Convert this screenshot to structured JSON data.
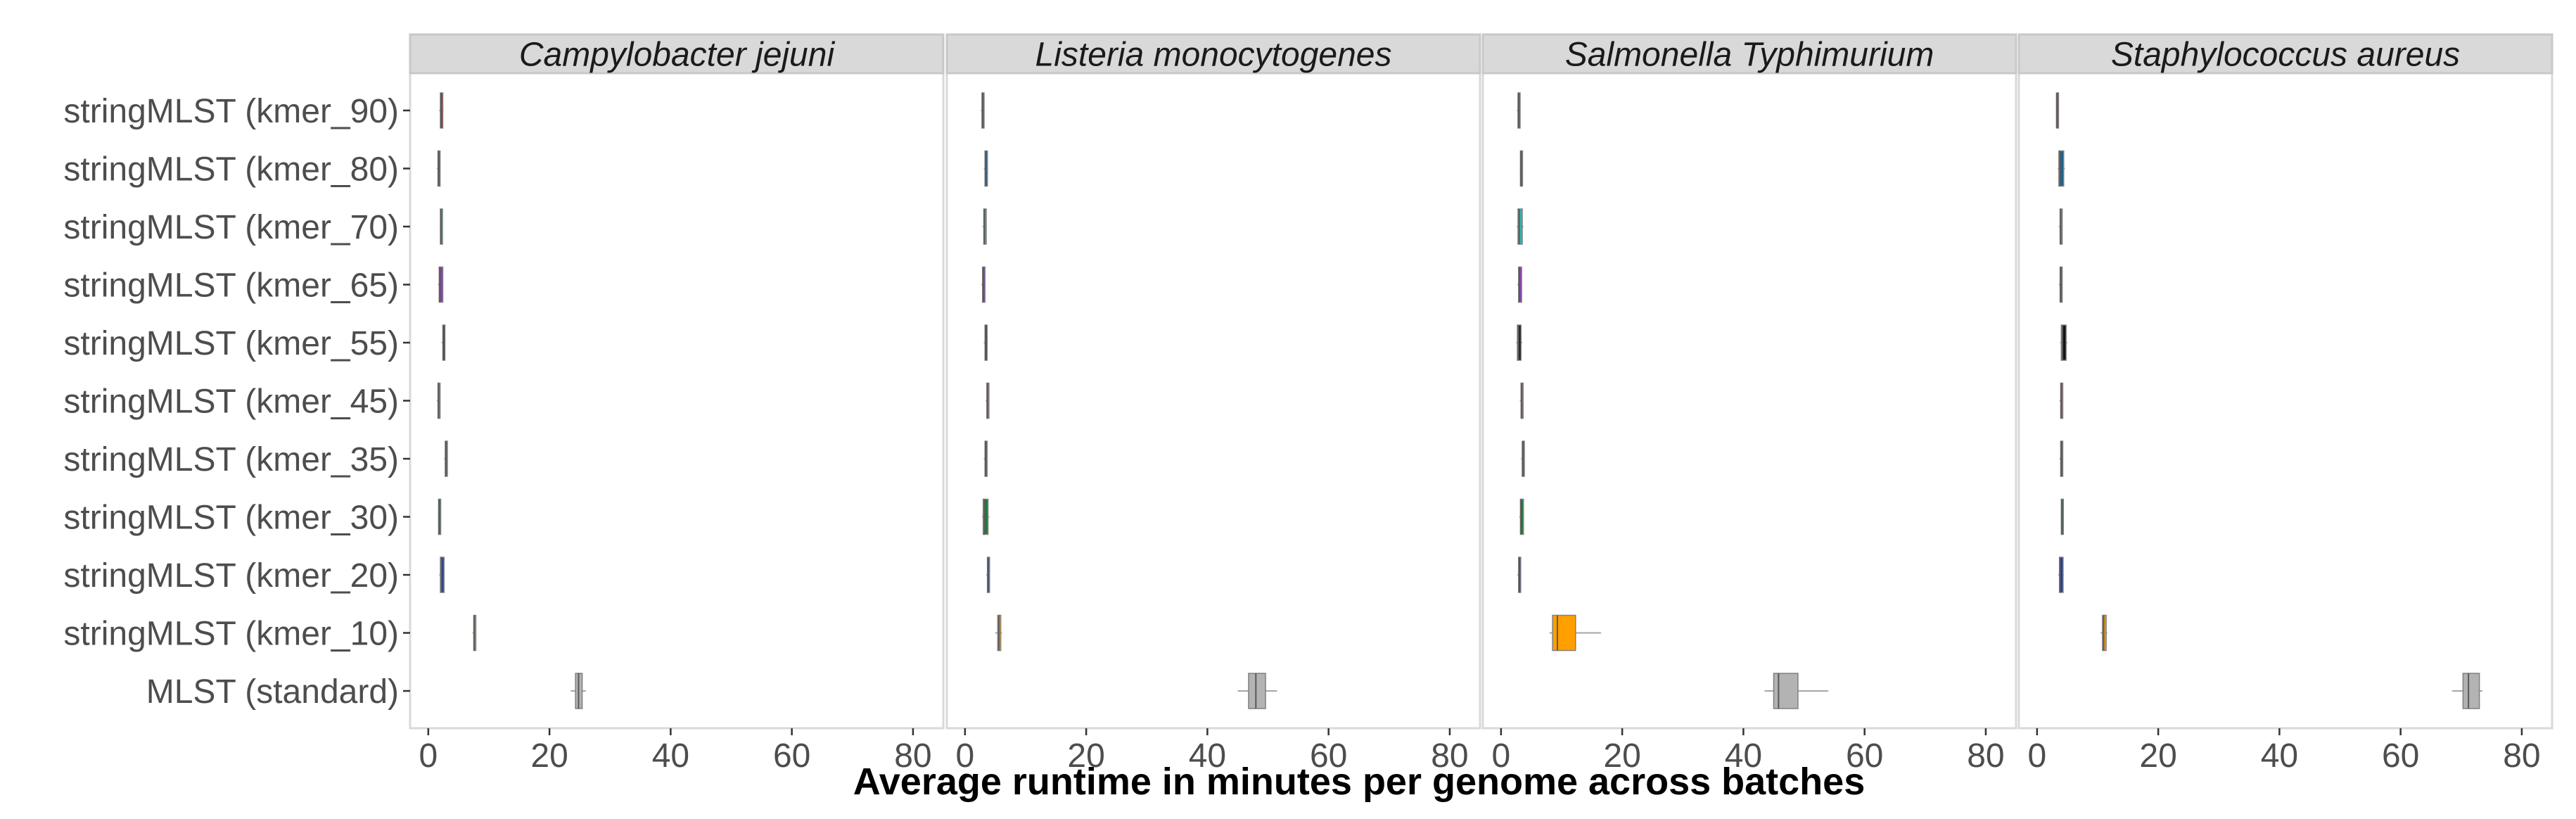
{
  "chart_data": {
    "type": "boxplot",
    "orientation": "horizontal",
    "xlabel": "Average runtime in minutes per genome across batches",
    "xlim": [
      -3,
      85
    ],
    "xticks": [
      "0",
      "20",
      "40",
      "60",
      "80"
    ],
    "xtick_values": [
      0,
      20,
      40,
      60,
      80
    ],
    "categories": [
      "stringMLST (kmer_90)",
      "stringMLST (kmer_80)",
      "stringMLST (kmer_70)",
      "stringMLST (kmer_65)",
      "stringMLST (kmer_55)",
      "stringMLST (kmer_45)",
      "stringMLST (kmer_35)",
      "stringMLST (kmer_30)",
      "stringMLST (kmer_20)",
      "stringMLST (kmer_10)",
      "MLST (standard)"
    ],
    "colors": [
      "#a83236",
      "#1f6391",
      "#31b5b5",
      "#8a3bb3",
      "#111111",
      "#b06d7a",
      "#555555",
      "#1e7a3a",
      "#1a3ea8",
      "#ff9f00",
      "#b3b3b3"
    ],
    "panels": [
      {
        "title": "Campylobacter jejuni",
        "boxes": [
          {
            "min": 1.8,
            "q1": 2.0,
            "median": 2.1,
            "q3": 2.4,
            "max": 2.5
          },
          {
            "min": 1.4,
            "q1": 1.6,
            "median": 1.7,
            "q3": 1.9,
            "max": 2.0
          },
          {
            "min": 1.9,
            "q1": 2.0,
            "median": 2.1,
            "q3": 2.2,
            "max": 2.3
          },
          {
            "min": 1.6,
            "q1": 1.8,
            "median": 1.9,
            "q3": 2.4,
            "max": 2.5
          },
          {
            "min": 2.2,
            "q1": 2.4,
            "median": 2.5,
            "q3": 2.6,
            "max": 2.7
          },
          {
            "min": 1.4,
            "q1": 1.6,
            "median": 1.7,
            "q3": 1.9,
            "max": 2.0
          },
          {
            "min": 2.6,
            "q1": 2.8,
            "median": 2.9,
            "q3": 3.1,
            "max": 3.2
          },
          {
            "min": 1.6,
            "q1": 1.7,
            "median": 1.8,
            "q3": 1.9,
            "max": 2.0
          },
          {
            "min": 1.8,
            "q1": 2.0,
            "median": 2.2,
            "q3": 2.6,
            "max": 2.7
          },
          {
            "min": 7.3,
            "q1": 7.5,
            "median": 7.6,
            "q3": 7.8,
            "max": 7.9
          },
          {
            "min": 23.5,
            "q1": 24.3,
            "median": 24.8,
            "q3": 25.4,
            "max": 26.0
          }
        ]
      },
      {
        "title": "Listeria monocytogenes",
        "boxes": [
          {
            "min": 2.6,
            "q1": 2.8,
            "median": 2.9,
            "q3": 3.1,
            "max": 3.2
          },
          {
            "min": 3.1,
            "q1": 3.3,
            "median": 3.4,
            "q3": 3.7,
            "max": 3.8
          },
          {
            "min": 2.9,
            "q1": 3.1,
            "median": 3.2,
            "q3": 3.5,
            "max": 3.6
          },
          {
            "min": 2.7,
            "q1": 2.9,
            "median": 3.0,
            "q3": 3.3,
            "max": 3.4
          },
          {
            "min": 3.1,
            "q1": 3.3,
            "median": 3.4,
            "q3": 3.6,
            "max": 3.7
          },
          {
            "min": 3.4,
            "q1": 3.6,
            "median": 3.7,
            "q3": 3.8,
            "max": 3.9
          },
          {
            "min": 3.1,
            "q1": 3.3,
            "median": 3.4,
            "q3": 3.5,
            "max": 3.6
          },
          {
            "min": 2.8,
            "q1": 3.0,
            "median": 3.2,
            "q3": 3.8,
            "max": 4.0
          },
          {
            "min": 3.5,
            "q1": 3.7,
            "median": 3.8,
            "q3": 3.9,
            "max": 4.0
          },
          {
            "min": 5.0,
            "q1": 5.4,
            "median": 5.6,
            "q3": 5.9,
            "max": 6.1
          },
          {
            "min": 45.0,
            "q1": 46.8,
            "median": 48.0,
            "q3": 49.6,
            "max": 51.5
          }
        ]
      },
      {
        "title": "Salmonella Typhimurium",
        "boxes": [
          {
            "min": 2.6,
            "q1": 2.8,
            "median": 2.9,
            "q3": 3.1,
            "max": 3.2
          },
          {
            "min": 3.1,
            "q1": 3.2,
            "median": 3.3,
            "q3": 3.4,
            "max": 3.5
          },
          {
            "min": 2.6,
            "q1": 2.8,
            "median": 3.0,
            "q3": 3.5,
            "max": 3.7
          },
          {
            "min": 2.7,
            "q1": 2.9,
            "median": 3.0,
            "q3": 3.4,
            "max": 3.5
          },
          {
            "min": 2.5,
            "q1": 2.7,
            "median": 2.9,
            "q3": 3.3,
            "max": 3.5
          },
          {
            "min": 3.1,
            "q1": 3.3,
            "median": 3.4,
            "q3": 3.5,
            "max": 3.6
          },
          {
            "min": 3.3,
            "q1": 3.5,
            "median": 3.6,
            "q3": 3.7,
            "max": 3.8
          },
          {
            "min": 3.0,
            "q1": 3.2,
            "median": 3.3,
            "q3": 3.7,
            "max": 3.8
          },
          {
            "min": 2.7,
            "q1": 2.9,
            "median": 3.0,
            "q3": 3.2,
            "max": 3.3
          },
          {
            "min": 8.0,
            "q1": 8.5,
            "median": 9.3,
            "q3": 12.3,
            "max": 16.5
          },
          {
            "min": 43.5,
            "q1": 45.0,
            "median": 45.8,
            "q3": 49.0,
            "max": 54.0
          }
        ]
      },
      {
        "title": "Staphylococcus aureus",
        "boxes": [
          {
            "min": 3.1,
            "q1": 3.2,
            "median": 3.3,
            "q3": 3.4,
            "max": 3.5
          },
          {
            "min": 3.4,
            "q1": 3.6,
            "median": 3.8,
            "q3": 4.4,
            "max": 4.6
          },
          {
            "min": 3.6,
            "q1": 3.8,
            "median": 3.9,
            "q3": 4.0,
            "max": 4.1
          },
          {
            "min": 3.6,
            "q1": 3.8,
            "median": 3.9,
            "q3": 4.1,
            "max": 4.2
          },
          {
            "min": 3.8,
            "q1": 4.0,
            "median": 4.2,
            "q3": 4.8,
            "max": 5.0
          },
          {
            "min": 3.7,
            "q1": 3.9,
            "median": 4.0,
            "q3": 4.2,
            "max": 4.3
          },
          {
            "min": 3.7,
            "q1": 3.9,
            "median": 4.0,
            "q3": 4.2,
            "max": 4.3
          },
          {
            "min": 3.9,
            "q1": 4.0,
            "median": 4.1,
            "q3": 4.2,
            "max": 4.3
          },
          {
            "min": 3.5,
            "q1": 3.7,
            "median": 3.8,
            "q3": 4.3,
            "max": 4.4
          },
          {
            "min": 10.5,
            "q1": 10.8,
            "median": 11.0,
            "q3": 11.4,
            "max": 11.6
          },
          {
            "min": 68.5,
            "q1": 70.3,
            "median": 71.2,
            "q3": 73.0,
            "max": 73.5
          }
        ]
      }
    ]
  }
}
